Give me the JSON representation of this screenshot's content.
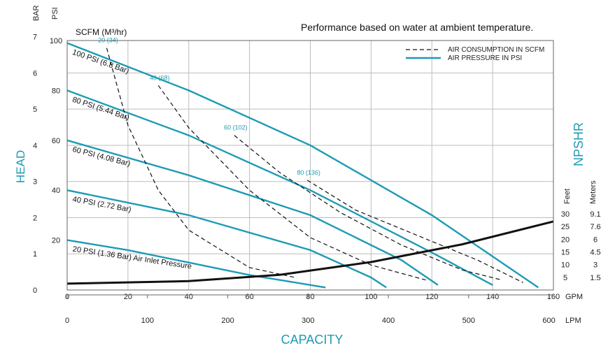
{
  "chart_data": {
    "type": "line",
    "title": "Performance based on water at ambient temperature.",
    "left_axis": {
      "label": "HEAD",
      "bar_label": "BAR",
      "psi_label": "PSI",
      "bar_ticks": [
        "0",
        "1",
        "2",
        "3",
        "4",
        "5",
        "6",
        "7"
      ],
      "psi_ticks": [
        "20",
        "40",
        "60",
        "80",
        "100"
      ],
      "psi_values": [
        20,
        40,
        60,
        80,
        100
      ],
      "ylim_psi": [
        0,
        100
      ]
    },
    "right_axis": {
      "label": "NPSHR",
      "feet_label": "Feet",
      "meters_label": "Meters",
      "feet_ticks": [
        "5",
        "10",
        "15",
        "20",
        "25",
        "30"
      ],
      "meters_ticks": [
        "1.5",
        "3",
        "4.5",
        "6",
        "7.6",
        "9.1"
      ]
    },
    "x_axis": {
      "label": "CAPACITY",
      "gpm_label": "GPM",
      "lpm_label": "LPM",
      "gpm_ticks": [
        "0",
        "20",
        "40",
        "60",
        "80",
        "100",
        "120",
        "140",
        "160"
      ],
      "lpm_ticks": [
        "0",
        "100",
        "200",
        "300",
        "400",
        "500",
        "600"
      ],
      "xlim_gpm": [
        0,
        160
      ]
    },
    "legend": {
      "air_consumption": "AIR CONSUMPTION IN SCFM",
      "air_pressure": "AIR PRESSURE IN PSI"
    },
    "scfm_label": "SCFM (M³/hr)",
    "series": [
      {
        "name": "100 PSI (6.8 Bar)",
        "x": [
          0,
          40,
          80,
          120,
          155
        ],
        "y": [
          99,
          80,
          58,
          30,
          1
        ]
      },
      {
        "name": "80 PSI (5.44 Bar)",
        "x": [
          0,
          40,
          80,
          120,
          140
        ],
        "y": [
          80,
          62,
          40,
          15,
          2
        ]
      },
      {
        "name": "60 PSI (4.08 Bar)",
        "x": [
          0,
          40,
          80,
          110,
          122
        ],
        "y": [
          60,
          46,
          30,
          12,
          2
        ]
      },
      {
        "name": "40 PSI (2.72 Bar)",
        "x": [
          0,
          40,
          80,
          100,
          105
        ],
        "y": [
          40,
          30,
          16,
          5,
          1
        ]
      },
      {
        "name": "20 PSI (1.36 Bar) Air Inlet Pressure",
        "x": [
          0,
          20,
          40,
          60,
          70,
          85
        ],
        "y": [
          20,
          16,
          11,
          6,
          4,
          1
        ]
      }
    ],
    "air_consumption": [
      {
        "label": "20 (34)",
        "x": [
          13,
          20,
          30,
          40,
          60,
          75
        ],
        "y": [
          97,
          66,
          40,
          24,
          9,
          5
        ]
      },
      {
        "label": "40 (68)",
        "x": [
          30,
          40,
          60,
          80,
          100,
          118
        ],
        "y": [
          82,
          65,
          40,
          21,
          10,
          4
        ]
      },
      {
        "label": "60 (102)",
        "x": [
          55,
          70,
          90,
          110,
          130,
          143
        ],
        "y": [
          62,
          47,
          31,
          18,
          8,
          4
        ]
      },
      {
        "label": "80 (136)",
        "x": [
          79,
          95,
          115,
          135,
          150
        ],
        "y": [
          44,
          32,
          22,
          12,
          3
        ]
      }
    ],
    "npshr": {
      "name": "NPSHR",
      "x": [
        0,
        40,
        70,
        100,
        130,
        160
      ],
      "y": [
        2.5,
        3.5,
        6,
        11,
        18,
        27
      ]
    }
  }
}
